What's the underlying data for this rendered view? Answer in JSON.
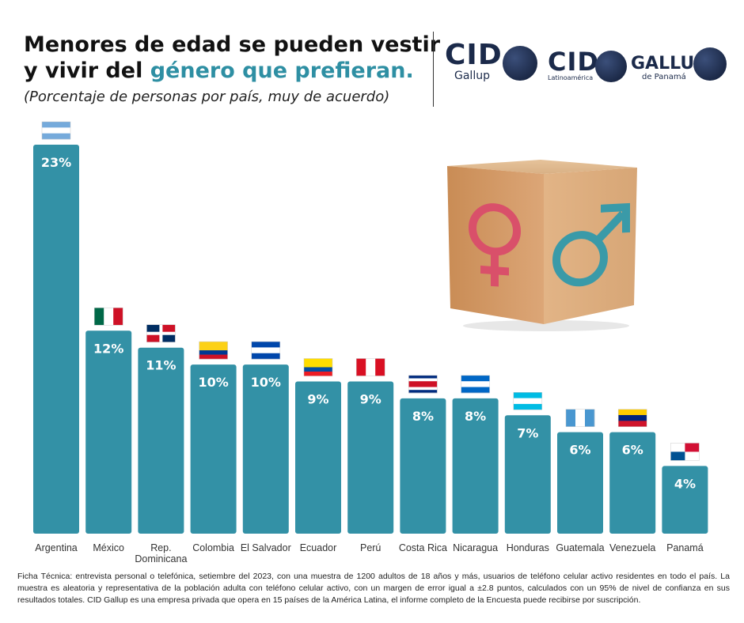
{
  "header": {
    "title_line1": "Menores de edad se pueden vestir",
    "title_line2_a": "y vivir del ",
    "title_line2_b": "género que prefieran.",
    "subtitle": "(Porcentaje de personas por país, muy de acuerdo)"
  },
  "logos": {
    "cid_gallup": {
      "big": "CID",
      "small": "Gallup"
    },
    "cid_latam": {
      "big": "CID",
      "small": "Latinoamérica"
    },
    "gallup_panama": {
      "big": "GALLUP",
      "small": "de Panamá"
    }
  },
  "colors": {
    "bar": "#3391a6",
    "accent": "#2e8fa3",
    "female": "#d9506a",
    "male": "#3a9aa8"
  },
  "chart_data": {
    "type": "bar",
    "categories": [
      "Argentina",
      "México",
      "Rep. Dominicana",
      "Colombia",
      "El Salvador",
      "Ecuador",
      "Perú",
      "Costa Rica",
      "Nicaragua",
      "Honduras",
      "Guatemala",
      "Venezuela",
      "Panamá"
    ],
    "category_lines": [
      [
        "Argentina"
      ],
      [
        "México"
      ],
      [
        "Rep.",
        "Dominicana"
      ],
      [
        "Colombia"
      ],
      [
        "El Salvador"
      ],
      [
        "Ecuador"
      ],
      [
        "Perú"
      ],
      [
        "Costa Rica"
      ],
      [
        "Nicaragua"
      ],
      [
        "Honduras"
      ],
      [
        "Guatemala"
      ],
      [
        "Venezuela"
      ],
      [
        "Panamá"
      ]
    ],
    "values": [
      23,
      12,
      11,
      10,
      10,
      9,
      9,
      8,
      8,
      7,
      6,
      6,
      4
    ],
    "value_labels": [
      "23%",
      "12%",
      "11%",
      "10%",
      "10%",
      "9%",
      "9%",
      "8%",
      "8%",
      "7%",
      "6%",
      "6%",
      "4%"
    ],
    "flags": [
      "argentina-flag",
      "mexico-flag",
      "dominican-republic-flag",
      "colombia-flag",
      "el-salvador-flag",
      "ecuador-flag",
      "peru-flag",
      "costa-rica-flag",
      "nicaragua-flag",
      "honduras-flag",
      "guatemala-flag",
      "venezuela-flag",
      "panama-flag"
    ],
    "ylim": [
      0,
      23
    ],
    "grid": false,
    "legend": "none"
  },
  "footnote": "Ficha Técnica: entrevista personal o telefónica, setiembre del 2023, con una muestra de 1200 adultos de 18 años y más, usuarios de teléfono celular activo residentes en todo el país. La muestra es aleatoria y representativa de la población adulta con teléfono celular activo, con un margen de error igual a ±2.8 puntos, calculados con un 95% de nivel de confianza en sus resultados totales. CID Gallup es una empresa privada que opera en 15 países de la América Latina, el informe completo de la Encuesta puede recibirse por suscripción."
}
